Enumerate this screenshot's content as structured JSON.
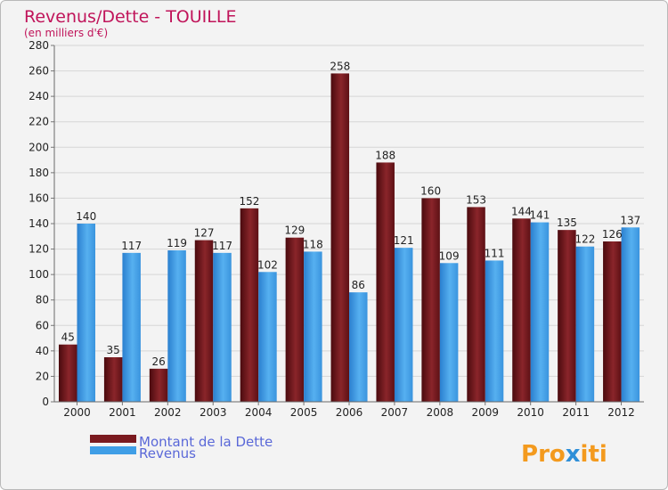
{
  "chart_data": {
    "type": "bar",
    "title": "Revenus/Dette - TOUILLE",
    "subtitle": "(en milliers d'€)",
    "categories": [
      "2000",
      "2001",
      "2002",
      "2003",
      "2004",
      "2005",
      "2006",
      "2007",
      "2008",
      "2009",
      "2010",
      "2011",
      "2012"
    ],
    "series": [
      {
        "name": "Montant de la Dette",
        "color": "#7a1a1f",
        "values": [
          45,
          35,
          26,
          127,
          152,
          129,
          258,
          188,
          160,
          153,
          144,
          135,
          126
        ]
      },
      {
        "name": "Revenus",
        "color": "#3f9ee6",
        "values": [
          140,
          117,
          119,
          117,
          102,
          118,
          86,
          121,
          109,
          111,
          141,
          122,
          137
        ]
      }
    ],
    "ylim": [
      0,
      280
    ],
    "ytick_step": 20,
    "grid": true,
    "legend_position": "bottom-left"
  },
  "brand": {
    "text": "Proxiti"
  }
}
